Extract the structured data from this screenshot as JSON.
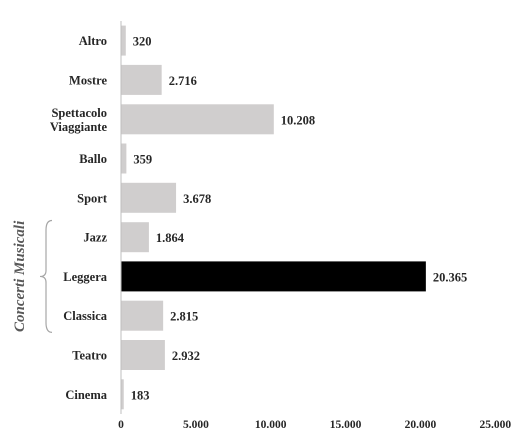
{
  "chart_data": {
    "type": "bar",
    "orientation": "horizontal",
    "categories": [
      "Altro",
      "Mostre",
      "Spettacolo\nViaggiante",
      "Ballo",
      "Sport",
      "Jazz",
      "Leggera",
      "Classica",
      "Teatro",
      "Cinema"
    ],
    "values": [
      320,
      2716,
      10208,
      359,
      3678,
      1864,
      20365,
      2815,
      2932,
      183
    ],
    "value_labels": [
      "320",
      "2.716",
      "10.208",
      "359",
      "3.678",
      "1.864",
      "20.365",
      "2.815",
      "2.932",
      "183"
    ],
    "highlight_category": "Leggera",
    "colors": {
      "bar": "#d0cece",
      "highlight": "#000000",
      "axis": "#bfbfbf",
      "text": "#262626",
      "group_text": "#595959",
      "bracket": "#a6a6a6"
    },
    "xlim": [
      0,
      25000
    ],
    "xticks": [
      0,
      5000,
      10000,
      15000,
      20000,
      25000
    ],
    "xtick_labels": [
      "0",
      "5.000",
      "10.000",
      "15.000",
      "20.000",
      "25.000"
    ],
    "group": {
      "label": "Concerti Musicali",
      "categories": [
        "Jazz",
        "Leggera",
        "Classica"
      ]
    },
    "title": "",
    "xlabel": "",
    "ylabel": "",
    "grid": false,
    "legend": "none"
  }
}
